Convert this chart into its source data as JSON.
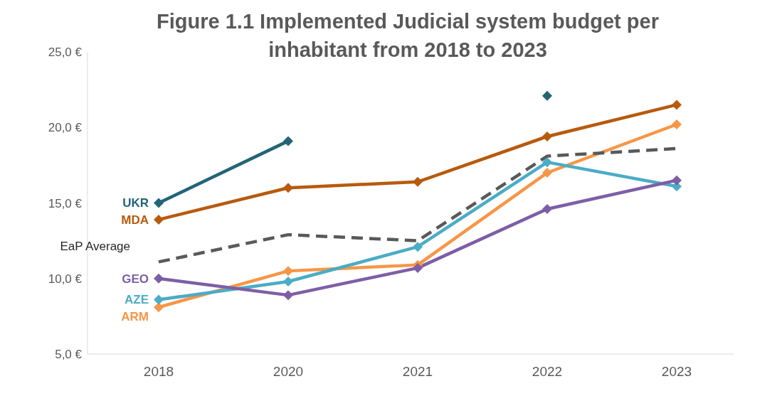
{
  "chart_data": {
    "type": "line",
    "title": "Figure 1.1 Implemented Judicial system budget per inhabitant from 2018 to 2023",
    "categories": [
      "2018",
      "2020",
      "2021",
      "2022",
      "2023"
    ],
    "series": [
      {
        "name": "UKR",
        "color": "#236477",
        "values": [
          15.0,
          19.1,
          null,
          22.1,
          null
        ]
      },
      {
        "name": "MDA",
        "color": "#b85a0d",
        "values": [
          13.9,
          16.0,
          16.4,
          19.4,
          21.5
        ]
      },
      {
        "name": "EaP Average",
        "color": "#595959",
        "values": [
          11.1,
          12.9,
          12.5,
          18.1,
          18.6
        ],
        "marker": "none",
        "line_style": "dashed"
      },
      {
        "name": "GEO",
        "color": "#7d5ea6",
        "values": [
          10.0,
          8.9,
          10.7,
          14.6,
          16.5
        ]
      },
      {
        "name": "AZE",
        "color": "#4bacc6",
        "values": [
          8.6,
          9.8,
          12.1,
          17.7,
          16.1
        ]
      },
      {
        "name": "ARM",
        "color": "#f79646",
        "values": [
          8.1,
          10.5,
          10.9,
          17.0,
          20.2
        ]
      }
    ],
    "ylim": [
      5,
      25
    ],
    "yticks": [
      {
        "value": 5,
        "label": "5,0 €"
      },
      {
        "value": 10,
        "label": "10,0 €"
      },
      {
        "value": 15,
        "label": "15,0 €"
      },
      {
        "value": 20,
        "label": "20,0 €"
      },
      {
        "value": 25,
        "label": "25,0 €"
      }
    ],
    "grid": false,
    "legend": false,
    "marker": "diamond",
    "line_style": "solid"
  }
}
